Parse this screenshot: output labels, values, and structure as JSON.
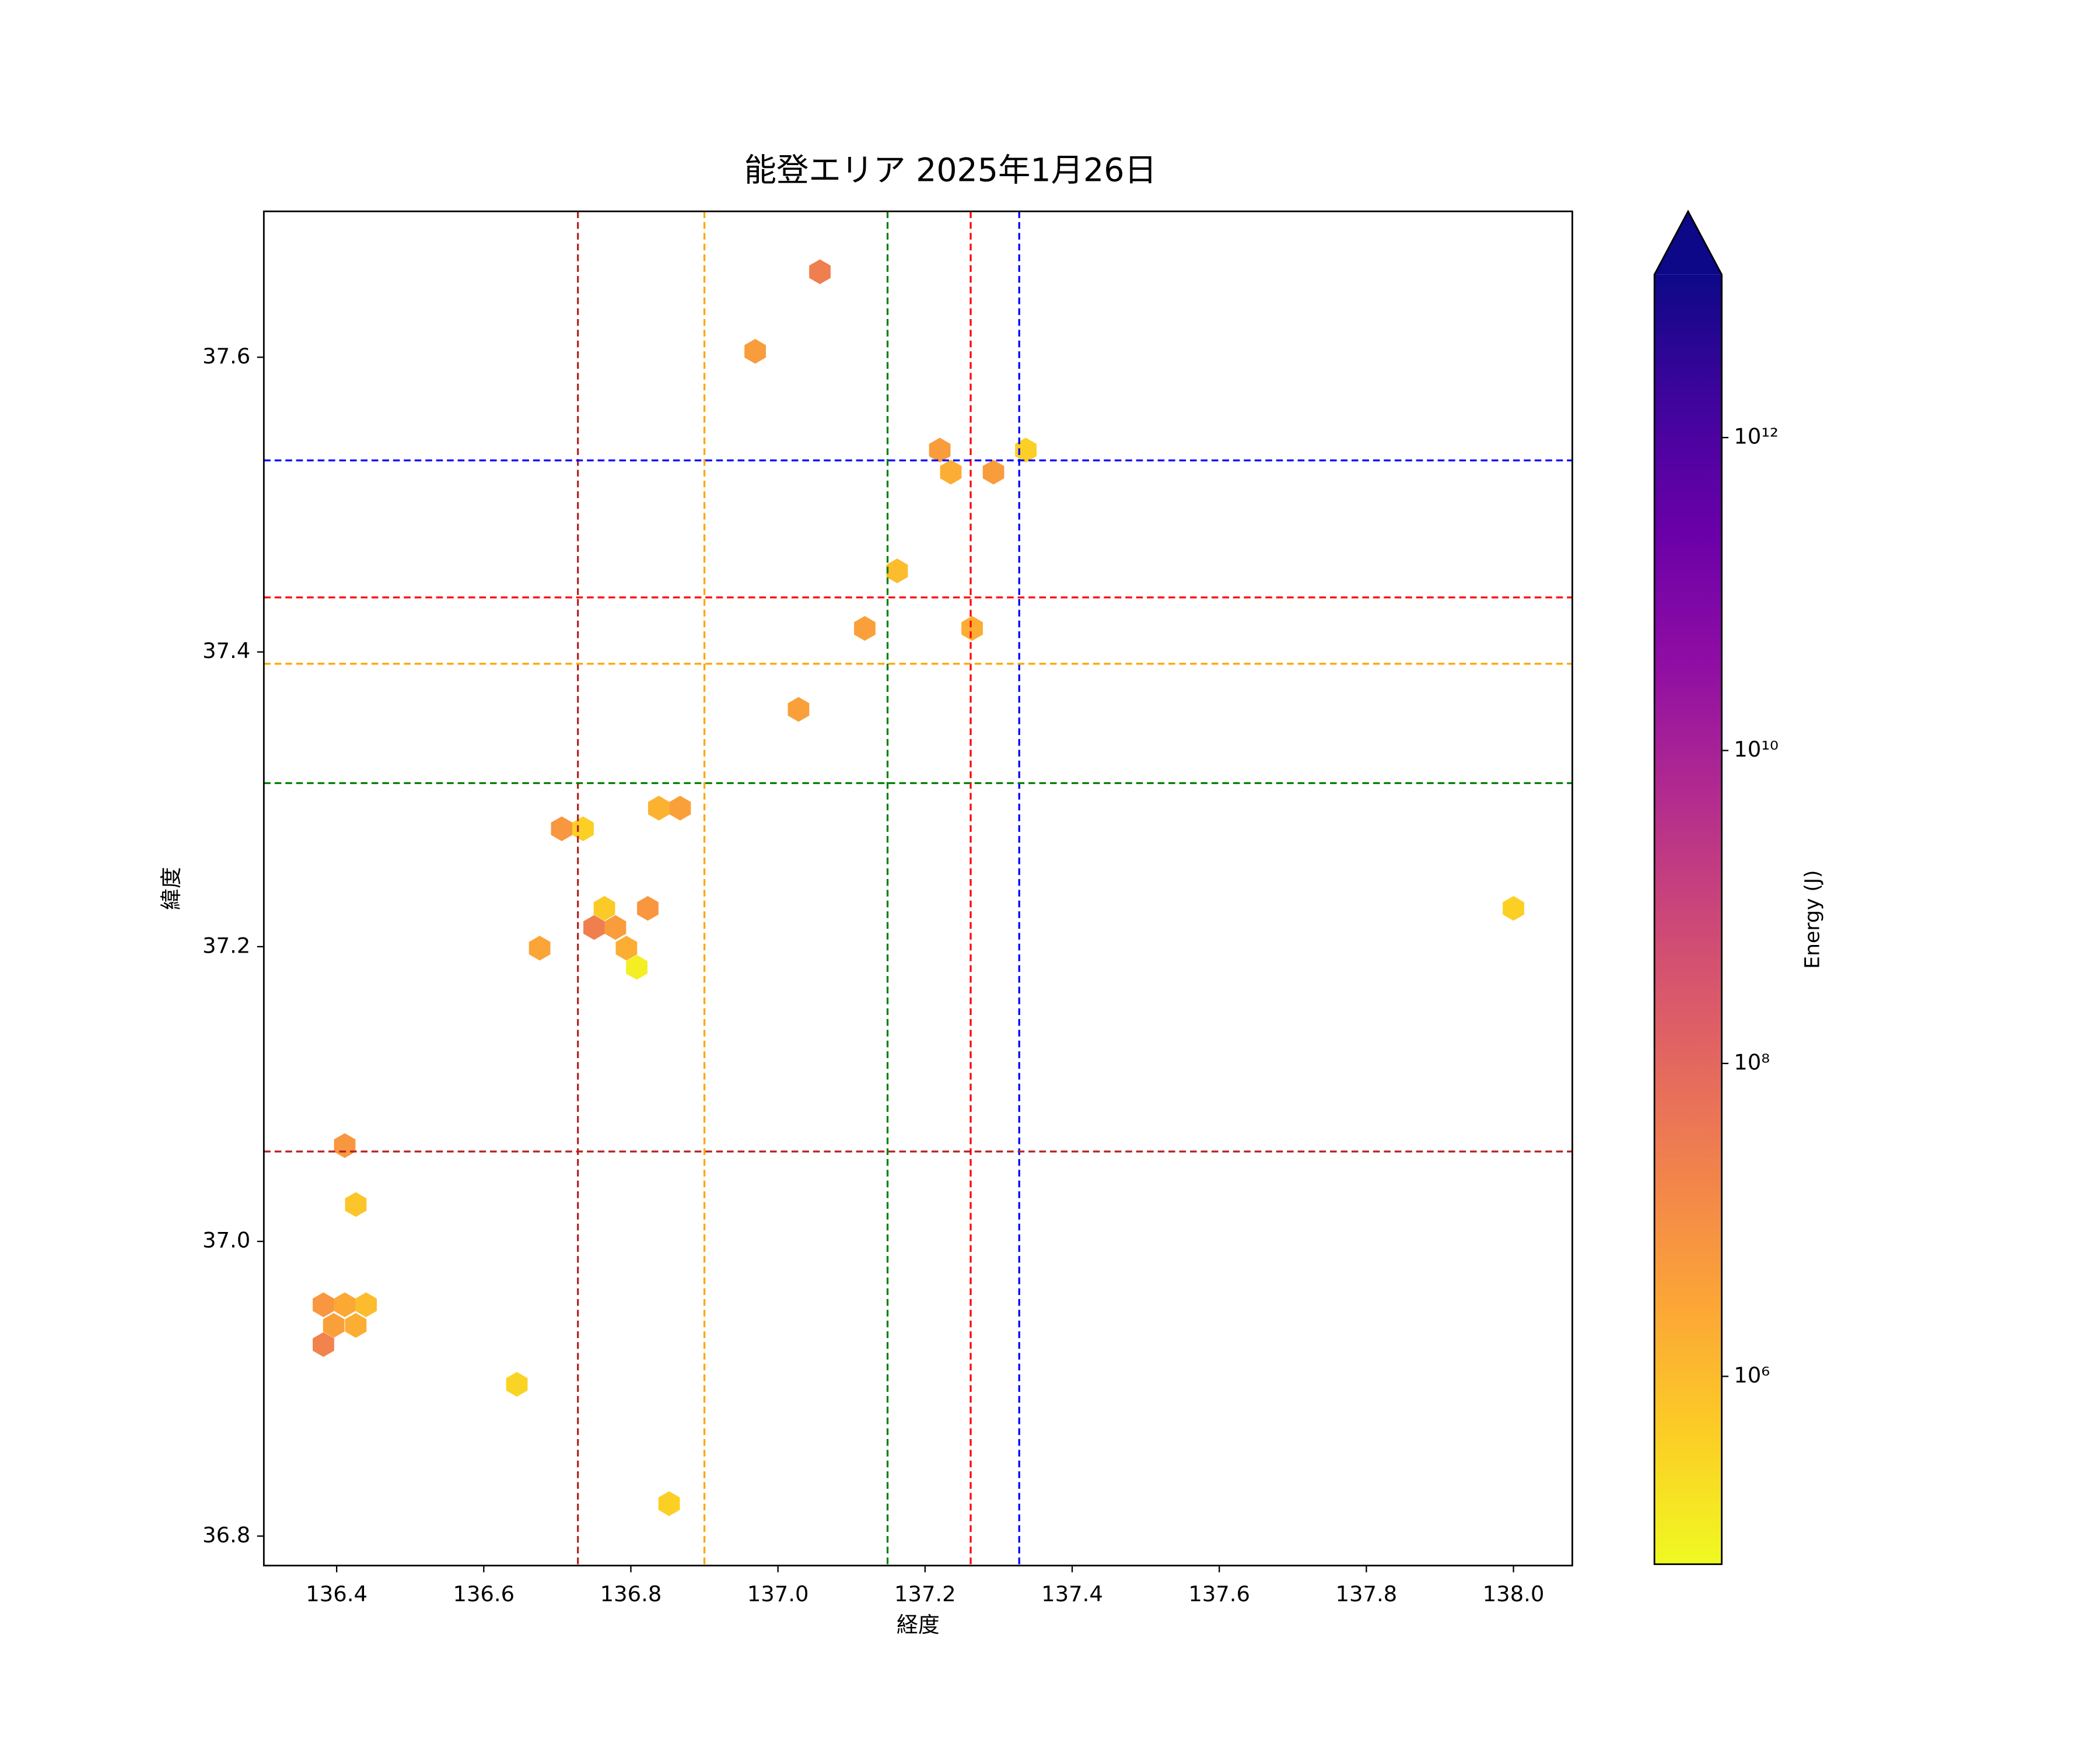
{
  "chart_data": {
    "type": "hexbin",
    "title": "能登エリア 2025年1月26日",
    "xlabel": "経度",
    "ylabel": "緯度",
    "xlim": [
      136.301,
      138.08
    ],
    "ylim": [
      36.78,
      37.699
    ],
    "xticks": [
      136.4,
      136.6,
      136.8,
      {
        "value": 137,
        "label": "137.0"
      },
      137.2,
      137.4,
      137.6,
      137.8,
      {
        "value": 138,
        "label": "138.0"
      }
    ],
    "yticks": [
      36.8,
      {
        "value": 37,
        "label": "37.0"
      },
      37.2,
      37.4,
      37.6
    ],
    "x": [
      137.057,
      136.969,
      137.22,
      137.235,
      137.293,
      137.337,
      137.162,
      137.118,
      137.264,
      137.028,
      136.838,
      136.867,
      136.706,
      136.735,
      136.764,
      136.823,
      136.75,
      136.779,
      136.676,
      136.794,
      136.808,
      138.0,
      136.411,
      136.426,
      136.382,
      136.411,
      136.44,
      136.396,
      136.426,
      136.382,
      136.645,
      136.852
    ],
    "y": [
      37.658,
      37.604,
      37.537,
      37.522,
      37.522,
      37.537,
      37.455,
      37.416,
      37.416,
      37.361,
      37.294,
      37.294,
      37.28,
      37.28,
      37.226,
      37.226,
      37.213,
      37.213,
      37.199,
      37.199,
      37.186,
      37.226,
      37.065,
      37.025,
      36.957,
      36.957,
      36.957,
      36.943,
      36.943,
      36.93,
      36.903,
      36.822
    ],
    "values": [
      25000000,
      5000000,
      5000000,
      2000000,
      5000000,
      400000,
      1000000,
      4000000,
      2000000,
      4000000,
      1600000,
      4000000,
      6300000,
      400000,
      500000,
      6300000,
      25000000,
      5000000,
      3200000,
      2000000,
      100000,
      400000,
      6300000,
      630000,
      6300000,
      2500000,
      1000000,
      4000000,
      2000000,
      20000000,
      320000,
      400000
    ],
    "colorbar": {
      "label": "Energy (J)",
      "scale": "log",
      "colormap": "plasma_r",
      "extend": "max",
      "lim": [
        63000,
        11000000000000
      ],
      "ticks": [
        {
          "value": 1000000,
          "label": "10⁶"
        },
        {
          "value": 100000000,
          "label": "10⁸"
        },
        {
          "value": 10000000000,
          "label": "10¹⁰"
        },
        {
          "value": 1000000000000,
          "label": "10¹²"
        }
      ]
    },
    "vlines": [
      {
        "x": 136.728,
        "color": "#b22222"
      },
      {
        "x": 136.9,
        "color": "#ffa500"
      },
      {
        "x": 137.149,
        "color": "#008000"
      },
      {
        "x": 137.262,
        "color": "#ff0000"
      },
      {
        "x": 137.328,
        "color": "#0000ff"
      }
    ],
    "hlines": [
      {
        "y": 37.53,
        "color": "#0000ff"
      },
      {
        "y": 37.437,
        "color": "#ff0000"
      },
      {
        "y": 37.392,
        "color": "#ffa500"
      },
      {
        "y": 37.311,
        "color": "#008000"
      },
      {
        "y": 37.061,
        "color": "#b22222"
      }
    ]
  }
}
